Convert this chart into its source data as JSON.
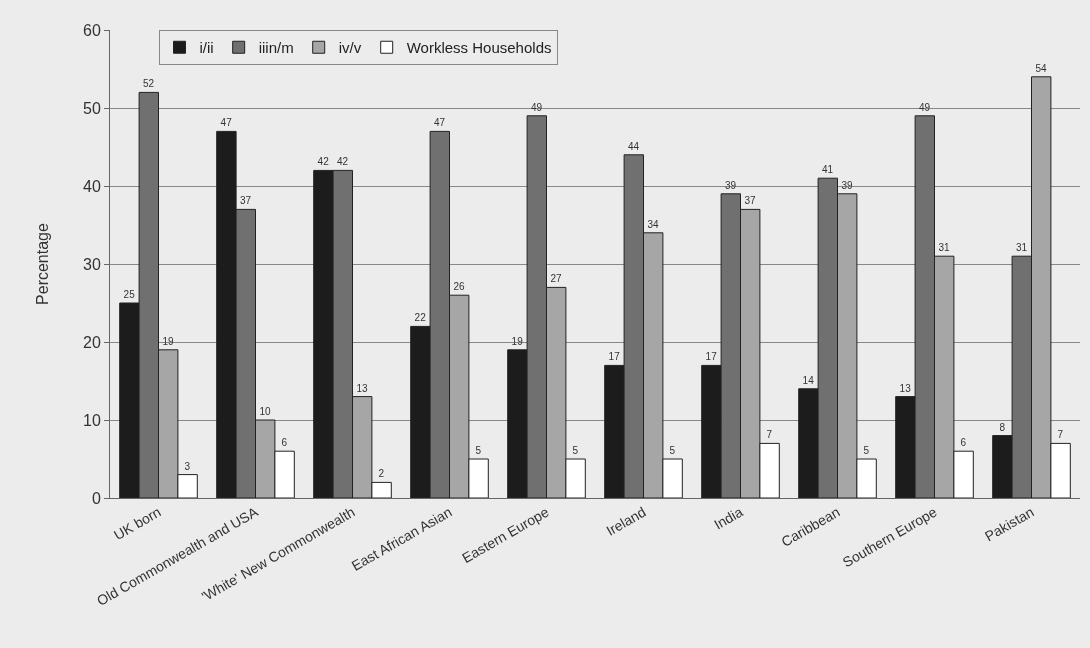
{
  "chart_data": {
    "type": "bar",
    "ylabel": "Percentage",
    "categories": [
      "UK born",
      "Old Commonwealth and USA",
      "'White' New Commonwealth",
      "East African Asian",
      "Eastern Europe",
      "Ireland",
      "India",
      "Caribbean",
      "Southern Europe",
      "Pakistan"
    ],
    "series": [
      {
        "name": "i/ii",
        "color": "#1c1c1c",
        "values": [
          25,
          47,
          42,
          22,
          19,
          17,
          17,
          14,
          13,
          8
        ]
      },
      {
        "name": "iiin/m",
        "color": "#707070",
        "values": [
          52,
          37,
          42,
          47,
          49,
          44,
          39,
          41,
          49,
          31
        ]
      },
      {
        "name": "iv/v",
        "color": "#a6a6a6",
        "values": [
          19,
          10,
          13,
          26,
          27,
          34,
          37,
          39,
          31,
          54
        ]
      },
      {
        "name": "Workless Households",
        "color": "#ffffff",
        "values": [
          3,
          6,
          2,
          5,
          5,
          5,
          7,
          5,
          6,
          7
        ]
      }
    ],
    "ylim": [
      0,
      60
    ],
    "yticks": [
      0,
      10,
      20,
      30,
      40,
      50,
      60
    ],
    "grid": "y",
    "legend": "top",
    "data_labels": true
  }
}
